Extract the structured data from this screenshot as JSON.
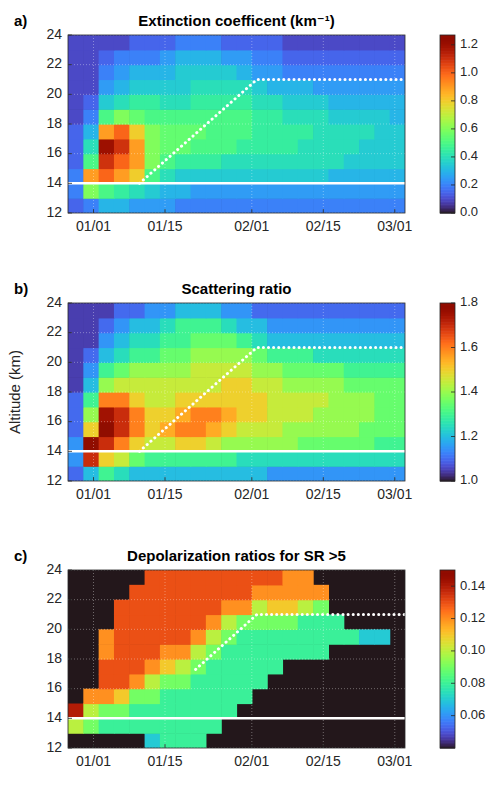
{
  "chart_data": [
    {
      "type": "heatmap",
      "title": "Extinction coefficent (km⁻¹)",
      "panel_label": "a)",
      "grid": true,
      "x": [
        -3.5,
        -0.5,
        2.5,
        5.5,
        8.5,
        11.5,
        14.5,
        17.5,
        20.5,
        23.5,
        26.5,
        29.5,
        32.5,
        35.5,
        38.5,
        41.5,
        44.5,
        47.5,
        50.5,
        53.5,
        56.5,
        59.5
      ],
      "y": [
        12.5,
        13.5,
        14.5,
        15.5,
        16.5,
        17.5,
        18.5,
        19.5,
        20.5,
        21.5,
        22.5,
        23.5
      ],
      "xlim": [
        -5,
        61
      ],
      "xticks": [
        {
          "value": 0,
          "label": "01/01"
        },
        {
          "value": 14,
          "label": "01/15"
        },
        {
          "value": 31,
          "label": "02/01"
        },
        {
          "value": 45,
          "label": "02/15"
        },
        {
          "value": 59,
          "label": "03/01"
        }
      ],
      "ylim": [
        12,
        24
      ],
      "yticks": [
        12,
        14,
        16,
        18,
        20,
        22,
        24
      ],
      "values": [
        [
          0.15,
          0.2,
          0.3,
          0.3,
          0.25,
          0.25,
          0.25,
          0.2,
          0.2,
          0.2,
          0.2,
          0.2,
          0.2,
          0.2,
          0.2,
          0.2,
          0.2,
          0.2,
          0.2,
          0.2,
          0.2,
          0.2
        ],
        [
          0.2,
          0.6,
          0.5,
          0.45,
          0.4,
          0.35,
          0.3,
          0.3,
          0.25,
          0.25,
          0.25,
          0.25,
          0.25,
          0.25,
          0.25,
          0.25,
          0.25,
          0.25,
          0.25,
          0.25,
          0.25,
          0.25
        ],
        [
          0.2,
          0.9,
          1.0,
          0.9,
          0.8,
          0.5,
          0.4,
          0.35,
          0.35,
          0.35,
          0.35,
          0.35,
          0.35,
          0.35,
          0.35,
          0.35,
          0.35,
          0.3,
          0.3,
          0.3,
          0.3,
          0.3
        ],
        [
          0.15,
          0.5,
          1.1,
          1.0,
          0.9,
          0.6,
          0.5,
          0.45,
          0.45,
          0.45,
          0.4,
          0.4,
          0.4,
          0.4,
          0.4,
          0.4,
          0.4,
          0.4,
          0.35,
          0.35,
          0.35,
          0.35
        ],
        [
          0.15,
          0.4,
          1.2,
          1.1,
          0.9,
          0.6,
          0.55,
          0.55,
          0.5,
          0.5,
          0.5,
          0.45,
          0.45,
          0.45,
          0.45,
          0.4,
          0.4,
          0.4,
          0.4,
          0.35,
          0.35,
          0.35
        ],
        [
          0.15,
          0.3,
          0.9,
          1.0,
          0.8,
          0.6,
          0.55,
          0.55,
          0.55,
          0.5,
          0.5,
          0.5,
          0.45,
          0.45,
          0.45,
          0.45,
          0.4,
          0.4,
          0.4,
          0.4,
          0.35,
          0.35
        ],
        [
          0.1,
          0.2,
          0.5,
          0.6,
          0.55,
          0.5,
          0.5,
          0.5,
          0.5,
          0.5,
          0.5,
          0.5,
          0.45,
          0.45,
          0.4,
          0.4,
          0.4,
          0.35,
          0.35,
          0.35,
          0.35,
          0.3
        ],
        [
          0.1,
          0.15,
          0.35,
          0.4,
          0.45,
          0.45,
          0.4,
          0.4,
          0.45,
          0.45,
          0.45,
          0.45,
          0.4,
          0.4,
          0.35,
          0.35,
          0.35,
          0.3,
          0.3,
          0.3,
          0.3,
          0.3
        ],
        [
          0.1,
          0.1,
          0.25,
          0.3,
          0.35,
          0.35,
          0.35,
          0.35,
          0.4,
          0.4,
          0.4,
          0.4,
          0.35,
          0.3,
          0.3,
          0.3,
          0.25,
          0.25,
          0.25,
          0.25,
          0.25,
          0.25
        ],
        [
          0.1,
          0.1,
          0.2,
          0.25,
          0.3,
          0.3,
          0.3,
          0.35,
          0.35,
          0.35,
          0.35,
          0.3,
          0.25,
          0.25,
          0.2,
          0.2,
          0.2,
          0.2,
          0.2,
          0.2,
          0.2,
          0.2
        ],
        [
          0.1,
          0.1,
          0.15,
          0.2,
          0.2,
          0.2,
          0.25,
          0.3,
          0.3,
          0.3,
          0.25,
          0.25,
          0.2,
          0.2,
          0.15,
          0.15,
          0.15,
          0.15,
          0.15,
          0.15,
          0.15,
          0.15
        ],
        [
          0.1,
          0.1,
          0.1,
          0.1,
          0.15,
          0.15,
          0.15,
          0.2,
          0.2,
          0.2,
          0.15,
          0.15,
          0.15,
          0.15,
          0.1,
          0.1,
          0.1,
          0.1,
          0.1,
          0.1,
          0.1,
          0.1
        ]
      ],
      "color_range": [
        0,
        1.27
      ],
      "color_ticks": [
        {
          "value": 0,
          "label": "0.0"
        },
        0.2,
        0.4,
        0.6,
        0.8,
        {
          "value": 1,
          "label": "1.0"
        },
        1.2
      ],
      "lines": [
        {
          "x": [
            -5,
            61
          ],
          "y": [
            14,
            14
          ],
          "color": "white",
          "line_style": "solid"
        },
        {
          "x": [
            9,
            32,
            61
          ],
          "y": [
            14,
            21,
            21
          ],
          "color": "white",
          "line_style": "dotted"
        }
      ]
    },
    {
      "type": "heatmap",
      "title": "Scattering ratio",
      "panel_label": "b)",
      "ylabel": "Altitude (km)",
      "grid": true,
      "x": [
        -3.5,
        -0.5,
        2.5,
        5.5,
        8.5,
        11.5,
        14.5,
        17.5,
        20.5,
        23.5,
        26.5,
        29.5,
        32.5,
        35.5,
        38.5,
        41.5,
        44.5,
        47.5,
        50.5,
        53.5,
        56.5,
        59.5
      ],
      "y": [
        12.5,
        13.5,
        14.5,
        15.5,
        16.5,
        17.5,
        18.5,
        19.5,
        20.5,
        21.5,
        22.5,
        23.5
      ],
      "xlim": [
        -5,
        61
      ],
      "xticks": [
        {
          "value": 0,
          "label": "01/01"
        },
        {
          "value": 14,
          "label": "01/15"
        },
        {
          "value": 31,
          "label": "02/01"
        },
        {
          "value": 45,
          "label": "02/15"
        },
        {
          "value": 59,
          "label": "03/01"
        }
      ],
      "ylim": [
        12,
        24
      ],
      "yticks": [
        12,
        14,
        16,
        18,
        20,
        22,
        24
      ],
      "values": [
        [
          1.1,
          1.2,
          1.3,
          1.25,
          1.2,
          1.2,
          1.2,
          1.2,
          1.2,
          1.2,
          1.2,
          1.2,
          1.2,
          1.15,
          1.15,
          1.15,
          1.15,
          1.15,
          1.15,
          1.15,
          1.15,
          1.15
        ],
        [
          1.15,
          1.7,
          1.5,
          1.45,
          1.35,
          1.3,
          1.3,
          1.3,
          1.3,
          1.3,
          1.3,
          1.25,
          1.25,
          1.25,
          1.25,
          1.25,
          1.25,
          1.25,
          1.25,
          1.25,
          1.25,
          1.25
        ],
        [
          1.15,
          1.8,
          1.7,
          1.6,
          1.5,
          1.45,
          1.45,
          1.5,
          1.5,
          1.45,
          1.4,
          1.4,
          1.4,
          1.4,
          1.4,
          1.35,
          1.35,
          1.35,
          1.35,
          1.35,
          1.3,
          1.3
        ],
        [
          1.1,
          1.5,
          1.8,
          1.7,
          1.6,
          1.5,
          1.55,
          1.6,
          1.6,
          1.55,
          1.5,
          1.45,
          1.45,
          1.45,
          1.4,
          1.4,
          1.4,
          1.4,
          1.4,
          1.35,
          1.35,
          1.35
        ],
        [
          1.1,
          1.4,
          1.75,
          1.7,
          1.6,
          1.5,
          1.5,
          1.55,
          1.6,
          1.6,
          1.55,
          1.5,
          1.5,
          1.45,
          1.45,
          1.45,
          1.4,
          1.4,
          1.4,
          1.4,
          1.35,
          1.35
        ],
        [
          1.1,
          1.3,
          1.6,
          1.6,
          1.5,
          1.45,
          1.45,
          1.5,
          1.5,
          1.5,
          1.5,
          1.5,
          1.5,
          1.45,
          1.45,
          1.45,
          1.45,
          1.4,
          1.4,
          1.4,
          1.35,
          1.35
        ],
        [
          1.05,
          1.2,
          1.4,
          1.45,
          1.45,
          1.45,
          1.45,
          1.45,
          1.45,
          1.45,
          1.5,
          1.5,
          1.45,
          1.45,
          1.4,
          1.4,
          1.4,
          1.4,
          1.35,
          1.35,
          1.35,
          1.35
        ],
        [
          1.05,
          1.15,
          1.3,
          1.35,
          1.4,
          1.4,
          1.4,
          1.4,
          1.45,
          1.45,
          1.45,
          1.45,
          1.4,
          1.4,
          1.35,
          1.35,
          1.35,
          1.35,
          1.3,
          1.3,
          1.3,
          1.3
        ],
        [
          1.05,
          1.1,
          1.2,
          1.25,
          1.3,
          1.3,
          1.35,
          1.35,
          1.4,
          1.4,
          1.4,
          1.4,
          1.35,
          1.3,
          1.3,
          1.3,
          1.25,
          1.25,
          1.25,
          1.25,
          1.25,
          1.25
        ],
        [
          1.05,
          1.05,
          1.15,
          1.2,
          1.25,
          1.25,
          1.3,
          1.3,
          1.35,
          1.35,
          1.35,
          1.3,
          1.25,
          1.2,
          1.2,
          1.2,
          1.2,
          1.2,
          1.2,
          1.2,
          1.2,
          1.2
        ],
        [
          1.05,
          1.05,
          1.1,
          1.15,
          1.2,
          1.2,
          1.25,
          1.3,
          1.3,
          1.3,
          1.25,
          1.2,
          1.2,
          1.15,
          1.15,
          1.15,
          1.15,
          1.15,
          1.15,
          1.15,
          1.15,
          1.15
        ],
        [
          1.05,
          1.05,
          1.05,
          1.1,
          1.1,
          1.15,
          1.15,
          1.2,
          1.2,
          1.2,
          1.15,
          1.15,
          1.1,
          1.1,
          1.1,
          1.1,
          1.1,
          1.1,
          1.1,
          1.1,
          1.1,
          1.1
        ]
      ],
      "color_range": [
        1.0,
        1.8
      ],
      "color_ticks": [
        {
          "value": 1,
          "label": "1.0"
        },
        1.2,
        1.4,
        1.6,
        1.8
      ],
      "lines": [
        {
          "x": [
            -5,
            61
          ],
          "y": [
            14,
            14
          ],
          "color": "white",
          "line_style": "solid"
        },
        {
          "x": [
            9,
            32,
            61
          ],
          "y": [
            14,
            21,
            21
          ],
          "color": "white",
          "line_style": "dotted"
        }
      ]
    },
    {
      "type": "heatmap",
      "title": "Depolarization ratios for SR >5",
      "panel_label": "c)",
      "grid": true,
      "x": [
        -3.5,
        -0.5,
        2.5,
        5.5,
        8.5,
        11.5,
        14.5,
        17.5,
        20.5,
        23.5,
        26.5,
        29.5,
        32.5,
        35.5,
        38.5,
        41.5,
        44.5,
        47.5,
        50.5,
        53.5,
        56.5,
        59.5
      ],
      "y": [
        12.5,
        13.5,
        14.5,
        15.5,
        16.5,
        17.5,
        18.5,
        19.5,
        20.5,
        21.5,
        22.5,
        23.5
      ],
      "xlim": [
        -5,
        61
      ],
      "xticks": [
        {
          "value": 0,
          "label": "01/01"
        },
        {
          "value": 14,
          "label": "01/15"
        },
        {
          "value": 31,
          "label": "02/01"
        },
        {
          "value": 45,
          "label": "02/15"
        },
        {
          "value": 59,
          "label": "03/01"
        }
      ],
      "ylim": [
        12,
        24
      ],
      "yticks": [
        12,
        14,
        16,
        18,
        20,
        22,
        24
      ],
      "values": [
        [
          null,
          null,
          null,
          null,
          null,
          0.07,
          0.08,
          0.08,
          0.08,
          null,
          null,
          null,
          null,
          null,
          null,
          null,
          null,
          null,
          null,
          null,
          null,
          null
        ],
        [
          0.1,
          0.09,
          0.08,
          0.08,
          0.08,
          0.08,
          0.08,
          0.08,
          0.08,
          0.08,
          null,
          null,
          null,
          null,
          null,
          null,
          null,
          null,
          null,
          null,
          null,
          null
        ],
        [
          0.14,
          0.1,
          0.09,
          0.09,
          0.08,
          0.08,
          0.08,
          0.08,
          0.08,
          0.08,
          0.08,
          null,
          null,
          null,
          null,
          null,
          null,
          null,
          null,
          null,
          null,
          null
        ],
        [
          null,
          0.12,
          0.12,
          0.11,
          0.09,
          0.09,
          0.08,
          0.08,
          0.08,
          0.08,
          0.08,
          0.08,
          null,
          null,
          null,
          null,
          null,
          null,
          null,
          null,
          null,
          null
        ],
        [
          null,
          null,
          0.13,
          0.13,
          0.12,
          0.1,
          0.09,
          0.09,
          0.08,
          0.08,
          0.08,
          0.08,
          0.08,
          null,
          null,
          null,
          null,
          null,
          null,
          null,
          null,
          null
        ],
        [
          null,
          null,
          0.13,
          0.13,
          0.13,
          0.12,
          0.11,
          0.1,
          0.09,
          0.08,
          0.08,
          0.08,
          0.08,
          0.08,
          null,
          null,
          null,
          null,
          null,
          null,
          null,
          null
        ],
        [
          null,
          null,
          0.12,
          0.13,
          0.13,
          0.13,
          0.12,
          0.12,
          0.1,
          0.09,
          0.08,
          0.08,
          0.08,
          0.08,
          0.08,
          0.08,
          0.08,
          null,
          null,
          null,
          null,
          null
        ],
        [
          null,
          null,
          0.12,
          0.13,
          0.13,
          0.13,
          0.13,
          0.13,
          0.12,
          0.1,
          0.09,
          0.08,
          0.08,
          0.08,
          0.08,
          0.08,
          0.08,
          0.08,
          0.08,
          0.07,
          0.07,
          null
        ],
        [
          null,
          null,
          null,
          0.13,
          0.13,
          0.13,
          0.13,
          0.13,
          0.13,
          0.12,
          0.1,
          0.09,
          0.09,
          0.09,
          0.09,
          0.08,
          0.08,
          0.08,
          null,
          null,
          null,
          null
        ],
        [
          null,
          null,
          null,
          0.13,
          0.13,
          0.13,
          0.13,
          0.13,
          0.13,
          0.13,
          0.12,
          0.12,
          0.1,
          0.11,
          0.11,
          0.1,
          0.09,
          null,
          null,
          null,
          null,
          null
        ],
        [
          null,
          null,
          null,
          null,
          0.13,
          0.13,
          0.13,
          0.13,
          0.13,
          0.13,
          0.13,
          0.13,
          0.12,
          0.12,
          0.12,
          0.12,
          0.12,
          null,
          null,
          null,
          null,
          null
        ],
        [
          null,
          null,
          null,
          null,
          null,
          0.13,
          0.13,
          0.13,
          0.13,
          0.13,
          0.13,
          0.13,
          0.13,
          0.13,
          0.12,
          0.12,
          null,
          null,
          null,
          null,
          null,
          null
        ]
      ],
      "color_range": [
        0.04,
        0.15
      ],
      "color_ticks": [
        0.06,
        0.08,
        {
          "value": 0.1,
          "label": "0.10"
        },
        0.12,
        0.14
      ],
      "lines": [
        {
          "x": [
            -5,
            61
          ],
          "y": [
            14,
            14
          ],
          "color": "white",
          "line_style": "solid"
        },
        {
          "x": [
            20,
            32,
            61
          ],
          "y": [
            17.3,
            21,
            21
          ],
          "color": "white",
          "line_style": "dotted"
        }
      ]
    }
  ]
}
